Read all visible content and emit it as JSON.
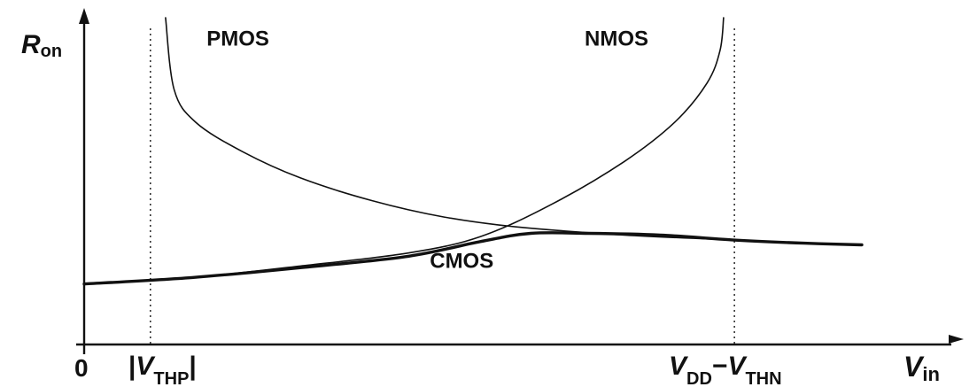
{
  "chart_data": {
    "type": "line",
    "title": "",
    "xlabel": {
      "main": "V",
      "sub": "in"
    },
    "ylabel": {
      "main": "R",
      "sub": "on"
    },
    "origin_label": "0",
    "xlim": [
      0,
      1
    ],
    "ylim": [
      0,
      1
    ],
    "grid": false,
    "markers": [
      {
        "name": "vthp",
        "x": 0.092,
        "parts": [
          {
            "text": "|",
            "sub": false
          },
          {
            "text": "V",
            "sub": false
          },
          {
            "text": "THP",
            "sub": true
          },
          {
            "text": "|",
            "sub": false
          }
        ]
      },
      {
        "name": "vdd-vthn",
        "x": 0.903,
        "parts": [
          {
            "text": "V",
            "sub": false
          },
          {
            "text": "DD",
            "sub": true
          },
          {
            "text": "−",
            "sub": false
          },
          {
            "text": "V",
            "sub": false
          },
          {
            "text": "THN",
            "sub": true
          }
        ]
      }
    ],
    "series": [
      {
        "name": "PMOS",
        "points": [
          [
            0.113,
            1.0
          ],
          [
            0.125,
            0.78
          ],
          [
            0.155,
            0.68
          ],
          [
            0.22,
            0.59
          ],
          [
            0.3,
            0.51
          ],
          [
            0.4,
            0.44
          ],
          [
            0.5,
            0.39
          ],
          [
            0.6,
            0.36
          ],
          [
            0.75,
            0.335
          ],
          [
            0.9,
            0.32
          ],
          [
            1.08,
            0.305
          ]
        ]
      },
      {
        "name": "NMOS",
        "points": [
          [
            0.0,
            0.185
          ],
          [
            0.15,
            0.205
          ],
          [
            0.3,
            0.24
          ],
          [
            0.45,
            0.28
          ],
          [
            0.55,
            0.33
          ],
          [
            0.65,
            0.43
          ],
          [
            0.75,
            0.56
          ],
          [
            0.82,
            0.68
          ],
          [
            0.865,
            0.8
          ],
          [
            0.883,
            0.9
          ],
          [
            0.888,
            1.0
          ]
        ]
      },
      {
        "name": "CMOS",
        "points": [
          [
            0.0,
            0.185
          ],
          [
            0.15,
            0.205
          ],
          [
            0.3,
            0.235
          ],
          [
            0.45,
            0.27
          ],
          [
            0.55,
            0.315
          ],
          [
            0.62,
            0.34
          ],
          [
            0.7,
            0.34
          ],
          [
            0.8,
            0.335
          ],
          [
            0.9,
            0.32
          ],
          [
            1.0,
            0.31
          ],
          [
            1.08,
            0.305
          ]
        ]
      }
    ],
    "annotations": [
      {
        "name": "pmos-label",
        "text": "PMOS",
        "x": 0.17,
        "y": 0.915
      },
      {
        "name": "nmos-label",
        "text": "NMOS",
        "x": 0.695,
        "y": 0.915
      },
      {
        "name": "cmos-label",
        "text": "CMOS",
        "x": 0.48,
        "y": 0.235
      }
    ]
  }
}
